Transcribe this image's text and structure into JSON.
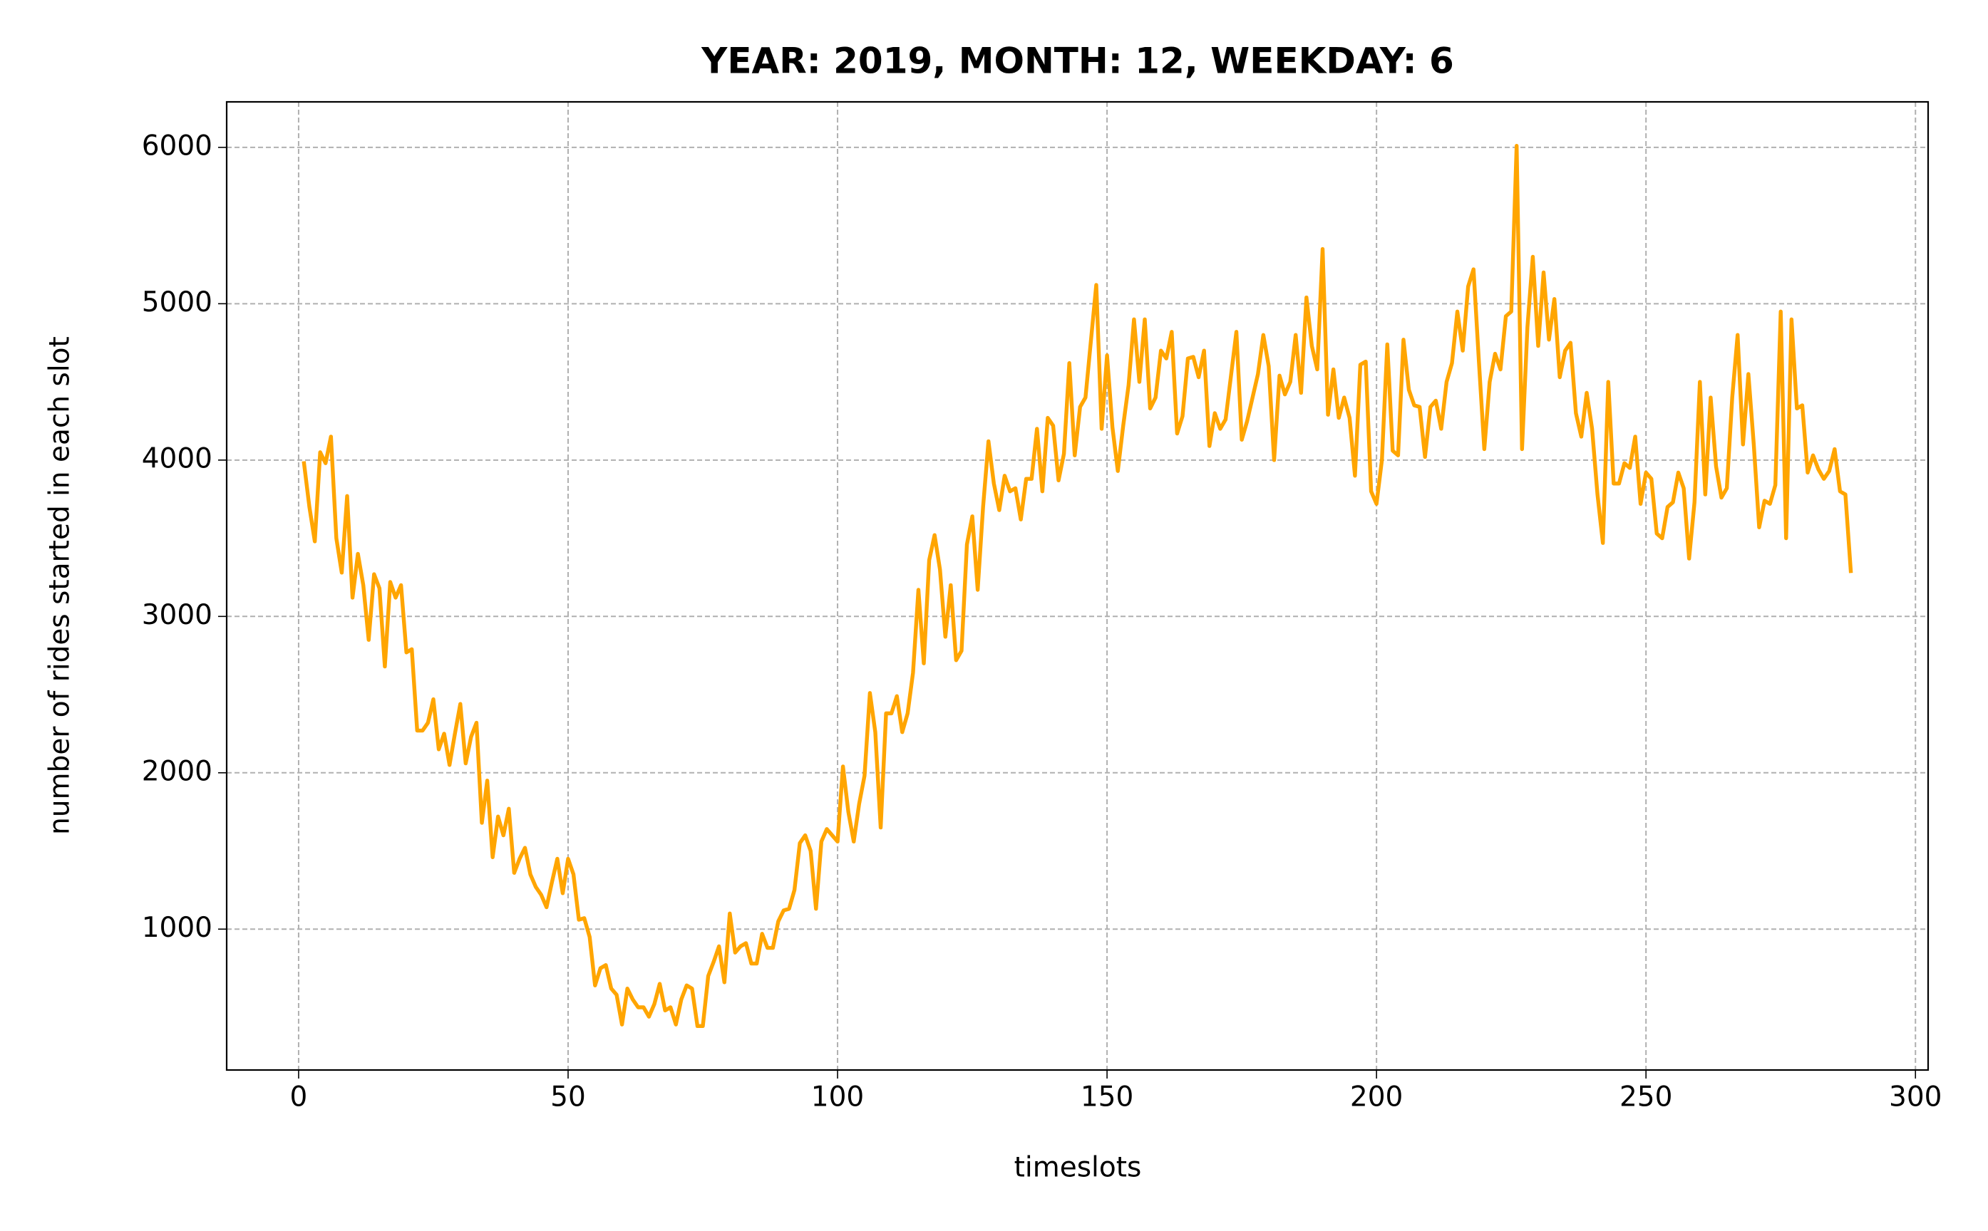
{
  "chart_data": {
    "type": "line",
    "title": "YEAR: 2019, MONTH: 12, WEEKDAY: 6",
    "xlabel": "timeslots",
    "ylabel": "number of rides started in each slot",
    "color": "#ffa500",
    "grid": true,
    "xlim": [
      -13.35,
      302.35
    ],
    "ylim": [
      99,
      6291
    ],
    "xticks": [
      0,
      50,
      100,
      150,
      200,
      250,
      300
    ],
    "yticks": [
      1000,
      2000,
      3000,
      4000,
      5000,
      6000
    ],
    "x": [
      1,
      2,
      3,
      4,
      5,
      6,
      7,
      8,
      9,
      10,
      11,
      12,
      13,
      14,
      15,
      16,
      17,
      18,
      19,
      20,
      21,
      22,
      23,
      24,
      25,
      26,
      27,
      28,
      29,
      30,
      31,
      32,
      33,
      34,
      35,
      36,
      37,
      38,
      39,
      40,
      41,
      42,
      43,
      44,
      45,
      46,
      47,
      48,
      49,
      50,
      51,
      52,
      53,
      54,
      55,
      56,
      57,
      58,
      59,
      60,
      61,
      62,
      63,
      64,
      65,
      66,
      67,
      68,
      69,
      70,
      71,
      72,
      73,
      74,
      75,
      76,
      77,
      78,
      79,
      80,
      81,
      82,
      83,
      84,
      85,
      86,
      87,
      88,
      89,
      90,
      91,
      92,
      93,
      94,
      95,
      96,
      97,
      98,
      99,
      100,
      101,
      102,
      103,
      104,
      105,
      106,
      107,
      108,
      109,
      110,
      111,
      112,
      113,
      114,
      115,
      116,
      117,
      118,
      119,
      120,
      121,
      122,
      123,
      124,
      125,
      126,
      127,
      128,
      129,
      130,
      131,
      132,
      133,
      134,
      135,
      136,
      137,
      138,
      139,
      140,
      141,
      142,
      143,
      144,
      145,
      146,
      147,
      148,
      149,
      150,
      151,
      152,
      153,
      154,
      155,
      156,
      157,
      158,
      159,
      160,
      161,
      162,
      163,
      164,
      165,
      166,
      167,
      168,
      169,
      170,
      171,
      172,
      173,
      174,
      175,
      176,
      177,
      178,
      179,
      180,
      181,
      182,
      183,
      184,
      185,
      186,
      187,
      188,
      189,
      190,
      191,
      192,
      193,
      194,
      195,
      196,
      197,
      198,
      199,
      200,
      201,
      202,
      203,
      204,
      205,
      206,
      207,
      208,
      209,
      210,
      211,
      212,
      213,
      214,
      215,
      216,
      217,
      218,
      219,
      220,
      221,
      222,
      223,
      224,
      225,
      226,
      227,
      228,
      229,
      230,
      231,
      232,
      233,
      234,
      235,
      236,
      237,
      238,
      239,
      240,
      241,
      242,
      243,
      244,
      245,
      246,
      247,
      248,
      249,
      250,
      251,
      252,
      253,
      254,
      255,
      256,
      257,
      258,
      259,
      260,
      261,
      262,
      263,
      264,
      265,
      266,
      267,
      268,
      269,
      270,
      271,
      272,
      273,
      274,
      275,
      276,
      277,
      278,
      279,
      280,
      281,
      282,
      283,
      284,
      285,
      286,
      287,
      288
    ],
    "values": [
      3980,
      3700,
      3480,
      4050,
      3980,
      4150,
      3500,
      3280,
      3770,
      3120,
      3400,
      3200,
      2850,
      3270,
      3180,
      2680,
      3220,
      3120,
      3200,
      2770,
      2790,
      2270,
      2270,
      2320,
      2470,
      2150,
      2250,
      2050,
      2250,
      2440,
      2060,
      2230,
      2320,
      1680,
      1950,
      1460,
      1720,
      1600,
      1770,
      1360,
      1450,
      1520,
      1350,
      1270,
      1220,
      1140,
      1300,
      1450,
      1230,
      1450,
      1350,
      1060,
      1070,
      950,
      640,
      750,
      770,
      620,
      580,
      390,
      620,
      550,
      500,
      500,
      440,
      520,
      650,
      480,
      500,
      390,
      550,
      640,
      620,
      380,
      380,
      700,
      790,
      890,
      660,
      1100,
      850,
      890,
      910,
      780,
      780,
      970,
      880,
      880,
      1050,
      1120,
      1130,
      1250,
      1550,
      1600,
      1500,
      1130,
      1560,
      1640,
      1600,
      1560,
      2040,
      1750,
      1560,
      1800,
      1980,
      2510,
      2260,
      1650,
      2380,
      2380,
      2490,
      2260,
      2380,
      2640,
      3170,
      2700,
      3360,
      3520,
      3300,
      2870,
      3200,
      2720,
      2780,
      3460,
      3640,
      3170,
      3700,
      4120,
      3850,
      3680,
      3900,
      3800,
      3820,
      3620,
      3880,
      3880,
      4200,
      3800,
      4270,
      4220,
      3870,
      4040,
      4620,
      4030,
      4340,
      4400,
      4760,
      5120,
      4200,
      4670,
      4210,
      3930,
      4220,
      4480,
      4900,
      4500,
      4900,
      4330,
      4400,
      4700,
      4650,
      4820,
      4170,
      4280,
      4650,
      4660,
      4530,
      4700,
      4090,
      4300,
      4200,
      4260,
      4540,
      4820,
      4130,
      4250,
      4400,
      4550,
      4800,
      4600,
      4000,
      4540,
      4420,
      4500,
      4800,
      4430,
      5040,
      4730,
      4580,
      5350,
      4290,
      4580,
      4270,
      4400,
      4270,
      3900,
      4610,
      4630,
      3800,
      3720,
      4000,
      4740,
      4060,
      4030,
      4770,
      4450,
      4350,
      4340,
      4020,
      4340,
      4380,
      4200,
      4500,
      4620,
      4950,
      4700,
      5110,
      5220,
      4630,
      4070,
      4500,
      4680,
      4580,
      4920,
      4950,
      6010,
      4070,
      4850,
      5300,
      4730,
      5200,
      4770,
      5030,
      4530,
      4700,
      4750,
      4300,
      4150,
      4430,
      4200,
      3780,
      3470,
      4500,
      3850,
      3850,
      3980,
      3950,
      4150,
      3720,
      3920,
      3880,
      3530,
      3500,
      3700,
      3730,
      3920,
      3820,
      3370,
      3730,
      4500,
      3780,
      4400,
      3960,
      3760,
      3820,
      4400,
      4800,
      4100,
      4550,
      4100,
      3570,
      3740,
      3720,
      3840,
      4950,
      3500,
      4900,
      4330,
      4350,
      3920,
      4030,
      3940,
      3880,
      3930,
      4070,
      3800,
      3780,
      3290
    ]
  }
}
